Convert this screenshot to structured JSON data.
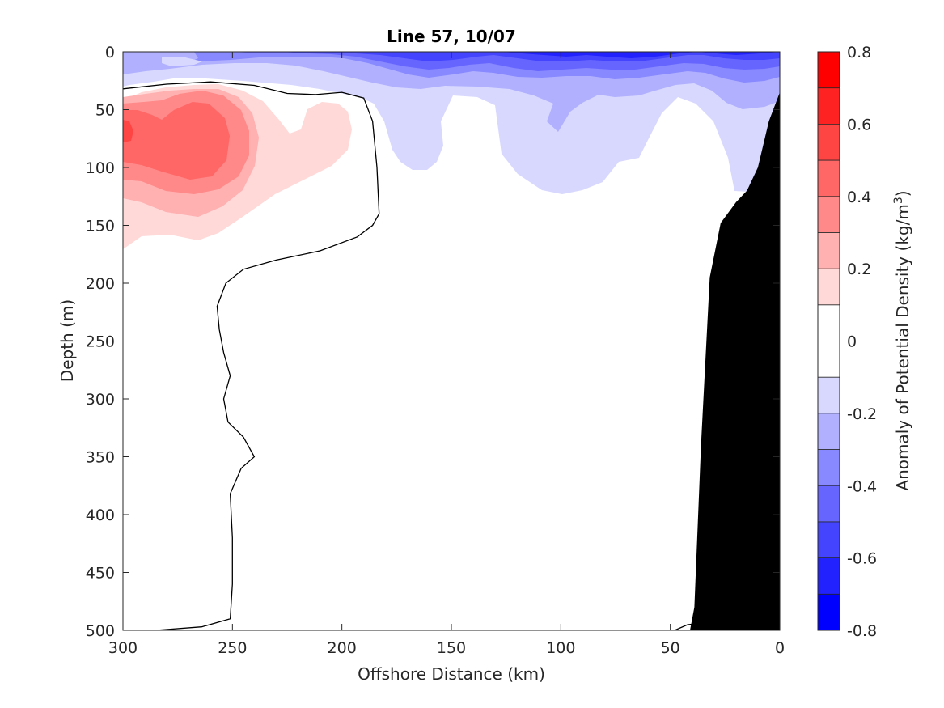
{
  "chart_data": {
    "type": "contour",
    "title": "Line 57, 10/07",
    "xlabel": "Offshore Distance (km)",
    "ylabel": "Depth (m)",
    "xlim": [
      300,
      0
    ],
    "ylim": [
      0,
      500
    ],
    "x_reversed": true,
    "y_reversed": true,
    "x_ticks": [
      "300",
      "250",
      "200",
      "150",
      "100",
      "50",
      "0"
    ],
    "y_ticks": [
      "0",
      "50",
      "100",
      "150",
      "200",
      "250",
      "300",
      "350",
      "400",
      "450",
      "500"
    ],
    "colorbar": {
      "label_prefix": "Anomaly of Potential Density (kg/m",
      "label_exp": "3",
      "label_suffix": ")",
      "ticks": [
        "0.8",
        "0.6",
        "0.4",
        "0.2",
        "0",
        "-0.2",
        "-0.4",
        "-0.6",
        "-0.8"
      ],
      "range": [
        -0.8,
        0.8
      ],
      "levels": 16,
      "colors": [
        "#ff0000",
        "#ff2222",
        "#ff4444",
        "#ff6666",
        "#ff8888",
        "#ffb0b0",
        "#ffd8d8",
        "#ffffff",
        "#ffffff",
        "#d8d8ff",
        "#b0b0ff",
        "#8888ff",
        "#6666ff",
        "#4444ff",
        "#2222ff",
        "#0000ff"
      ]
    },
    "zero_contour": [
      [
        300,
        32
      ],
      [
        280,
        28
      ],
      [
        260,
        26
      ],
      [
        240,
        29
      ],
      [
        225,
        36
      ],
      [
        212,
        37
      ],
      [
        200,
        35
      ],
      [
        190,
        40
      ],
      [
        186,
        60
      ],
      [
        184,
        100
      ],
      [
        183,
        140
      ],
      [
        186,
        150
      ],
      [
        193,
        160
      ],
      [
        210,
        172
      ],
      [
        230,
        180
      ],
      [
        245,
        188
      ],
      [
        253,
        200
      ],
      [
        257,
        220
      ],
      [
        256,
        240
      ],
      [
        254,
        260
      ],
      [
        251,
        280
      ],
      [
        254,
        300
      ],
      [
        252,
        320
      ],
      [
        245,
        333
      ],
      [
        240,
        350
      ],
      [
        246,
        360
      ],
      [
        251,
        382
      ],
      [
        250,
        420
      ],
      [
        250,
        460
      ],
      [
        251,
        490
      ],
      [
        264,
        497
      ],
      [
        285,
        500
      ]
    ],
    "bottom_topography": [
      [
        0,
        35
      ],
      [
        5,
        60
      ],
      [
        10,
        100
      ],
      [
        15,
        120
      ],
      [
        20,
        130
      ],
      [
        27,
        148
      ],
      [
        32,
        195
      ],
      [
        36,
        340
      ],
      [
        39,
        480
      ],
      [
        41,
        500
      ]
    ]
  }
}
